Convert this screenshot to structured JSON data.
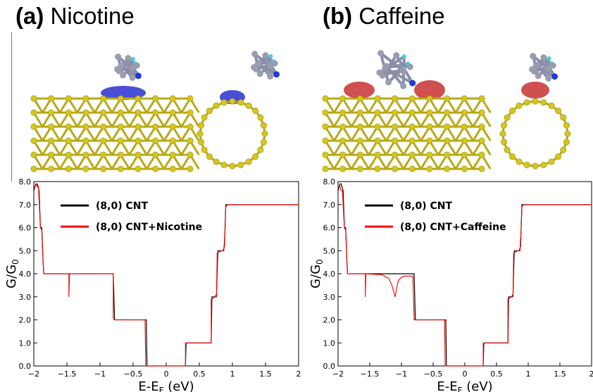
{
  "panels": [
    {
      "letter": "(a)",
      "name": "Nicotine"
    },
    {
      "letter": "(b)",
      "name": "Caffeine"
    }
  ],
  "colors": {
    "cnt": "#000000",
    "adsorbed": "#ff0000",
    "carbon": "#d4c61e",
    "density_neg": "#3a3fd0",
    "density_pos": "#cc4040"
  },
  "chart_data": [
    {
      "type": "line",
      "xlabel_main": "E-E",
      "xlabel_sub": "F",
      "xlabel_unit": " (eV)",
      "ylabel_main": "G/G",
      "ylabel_sub": "0",
      "xlim": [
        -2,
        2
      ],
      "ylim": [
        0,
        8
      ],
      "xticks": [
        "−2",
        "−1.5",
        "−1",
        "−0.5",
        "0",
        "0.5",
        "1",
        "1.5",
        "2"
      ],
      "yticks": [
        "0.0",
        "1.0",
        "2.0",
        "3.0",
        "4.0",
        "5.0",
        "6.0",
        "7.0",
        "8.0"
      ],
      "legend": [
        "(8,0) CNT",
        "(8,0) CNT+Nicotine"
      ],
      "series": [
        {
          "name": "(8,0) CNT",
          "color": "#000000",
          "x": [
            -2.0,
            -1.97,
            -1.95,
            -1.92,
            -1.9,
            -1.88,
            -1.86,
            -1.85,
            -1.83,
            -1.8,
            -0.8,
            -0.78,
            -0.3,
            -0.29,
            0.29,
            0.3,
            0.68,
            0.69,
            0.74,
            0.76,
            0.78,
            0.8,
            0.86,
            0.88,
            0.9,
            0.93,
            0.95,
            0.97,
            2.0
          ],
          "y": [
            7.6,
            7.9,
            7.9,
            7.6,
            6.0,
            6.0,
            4.5,
            4.0,
            4.0,
            4.0,
            4.0,
            2.0,
            2.0,
            0.0,
            0.0,
            1.0,
            1.0,
            3.0,
            3.0,
            3.1,
            5.0,
            5.0,
            5.0,
            5.2,
            7.0,
            7.0,
            7.0,
            7.0,
            7.0
          ]
        },
        {
          "name": "(8,0) CNT+Nicotine",
          "color": "#ff0000",
          "x": [
            -2.0,
            -1.97,
            -1.95,
            -1.93,
            -1.92,
            -1.9,
            -1.88,
            -1.86,
            -1.85,
            -1.83,
            -1.47,
            -1.47,
            -1.46,
            -1.45,
            -0.8,
            -0.8,
            -0.78,
            -0.32,
            -0.31,
            0.29,
            0.29,
            0.68,
            0.68,
            0.74,
            0.76,
            0.77,
            0.84,
            0.87,
            0.89,
            0.9,
            0.93,
            2.0
          ],
          "y": [
            7.7,
            7.9,
            7.8,
            7.8,
            7.2,
            6.0,
            5.9,
            4.5,
            4.0,
            4.0,
            4.0,
            3.0,
            4.0,
            4.0,
            4.0,
            2.05,
            2.0,
            2.0,
            0.0,
            0.0,
            1.0,
            1.0,
            2.9,
            3.0,
            3.0,
            4.9,
            5.0,
            5.0,
            6.0,
            6.9,
            7.0,
            7.0
          ]
        }
      ]
    },
    {
      "type": "line",
      "xlabel_main": "E-E",
      "xlabel_sub": "F",
      "xlabel_unit": " (eV)",
      "ylabel_main": "G/G",
      "ylabel_sub": "0",
      "xlim": [
        -2,
        2
      ],
      "ylim": [
        0,
        8
      ],
      "xticks": [
        "−2",
        "−1.5",
        "−1",
        "−0.5",
        "0",
        "0.5",
        "1",
        "1.5",
        "2"
      ],
      "yticks": [
        "0.0",
        "1.0",
        "2.0",
        "3.0",
        "4.0",
        "5.0",
        "6.0",
        "7.0",
        "8.0"
      ],
      "legend": [
        "(8,0) CNT",
        "(8,0) CNT+Caffeine"
      ],
      "series": [
        {
          "name": "(8,0) CNT",
          "color": "#000000",
          "x": [
            -2.0,
            -1.97,
            -1.95,
            -1.92,
            -1.9,
            -1.88,
            -1.86,
            -1.85,
            -1.83,
            -1.8,
            -0.8,
            -0.78,
            -0.3,
            -0.29,
            0.29,
            0.3,
            0.68,
            0.69,
            0.74,
            0.76,
            0.78,
            0.8,
            0.86,
            0.88,
            0.9,
            0.93,
            0.95,
            0.97,
            2.0
          ],
          "y": [
            7.6,
            7.9,
            7.9,
            7.6,
            6.0,
            6.0,
            4.5,
            4.0,
            4.0,
            4.0,
            4.0,
            2.0,
            2.0,
            0.0,
            0.0,
            1.0,
            1.0,
            3.0,
            3.0,
            3.1,
            5.0,
            5.0,
            5.0,
            5.2,
            7.0,
            7.0,
            7.0,
            7.0,
            7.0
          ]
        },
        {
          "name": "(8,0) CNT+Caffeine",
          "color": "#ff0000",
          "x": [
            -2.0,
            -1.97,
            -1.95,
            -1.93,
            -1.92,
            -1.9,
            -1.88,
            -1.86,
            -1.85,
            -1.83,
            -1.57,
            -1.57,
            -1.56,
            -1.3,
            -1.2,
            -1.15,
            -1.12,
            -1.1,
            -1.08,
            -1.05,
            -1.0,
            -0.95,
            -0.9,
            -0.82,
            -0.8,
            -0.78,
            -0.32,
            -0.31,
            0.29,
            0.29,
            0.68,
            0.68,
            0.74,
            0.76,
            0.77,
            0.84,
            0.87,
            0.89,
            0.9,
            0.93,
            2.0
          ],
          "y": [
            7.7,
            7.8,
            7.6,
            7.6,
            7.0,
            6.0,
            5.9,
            4.5,
            4.0,
            4.0,
            4.0,
            3.0,
            4.0,
            3.95,
            3.8,
            3.5,
            3.2,
            3.0,
            3.3,
            3.7,
            3.85,
            3.9,
            3.9,
            3.9,
            2.0,
            2.0,
            2.0,
            0.0,
            0.0,
            1.0,
            1.0,
            2.9,
            3.0,
            3.0,
            4.9,
            5.0,
            5.0,
            6.0,
            6.9,
            7.0,
            7.0
          ]
        }
      ]
    }
  ]
}
